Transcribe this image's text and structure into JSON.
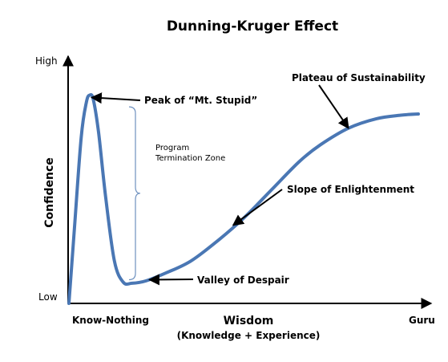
{
  "chart_data": {
    "type": "line",
    "title": "Dunning-Kruger Effect",
    "xlabel": "Wisdom",
    "xlabel_sub": "(Knowledge  +  Experience)",
    "ylabel": "Confidence",
    "x_ticks": {
      "start": "Know-Nothing",
      "end": "Guru"
    },
    "y_ticks": {
      "low": "Low",
      "high": "High"
    },
    "xlim": [
      0,
      100
    ],
    "ylim": [
      0,
      100
    ],
    "grid": false,
    "series": [
      {
        "color": "#4a77b4",
        "points": [
          [
            0.0,
            0
          ],
          [
            1.5,
            30
          ],
          [
            3.5,
            70
          ],
          [
            5.0,
            85
          ],
          [
            6.0,
            88
          ],
          [
            7.0,
            86
          ],
          [
            8.5,
            72
          ],
          [
            10.5,
            45
          ],
          [
            13.0,
            18
          ],
          [
            15.5,
            9
          ],
          [
            18.0,
            8.5
          ],
          [
            22.0,
            9.5
          ],
          [
            28.0,
            13
          ],
          [
            35.0,
            18
          ],
          [
            43.0,
            27
          ],
          [
            50.0,
            36
          ],
          [
            58.0,
            48
          ],
          [
            66.0,
            60
          ],
          [
            72.0,
            67
          ],
          [
            80.0,
            74
          ],
          [
            88.0,
            78
          ],
          [
            95.0,
            79.5
          ],
          [
            100.0,
            80
          ]
        ]
      }
    ],
    "annotations": [
      {
        "text": "Peak of “Mt. Stupid”",
        "target": [
          6.5,
          87
        ]
      },
      {
        "text": "Plateau of Sustainability",
        "target": [
          80,
          74
        ]
      },
      {
        "text": "Slope of Enlightenment",
        "target": [
          47,
          33
        ]
      },
      {
        "text": "Valley of Despair",
        "target": [
          23,
          10
        ]
      }
    ],
    "bracket": {
      "text_lines": [
        "Program",
        "Termination Zone"
      ],
      "range": [
        10,
        83
      ]
    }
  }
}
